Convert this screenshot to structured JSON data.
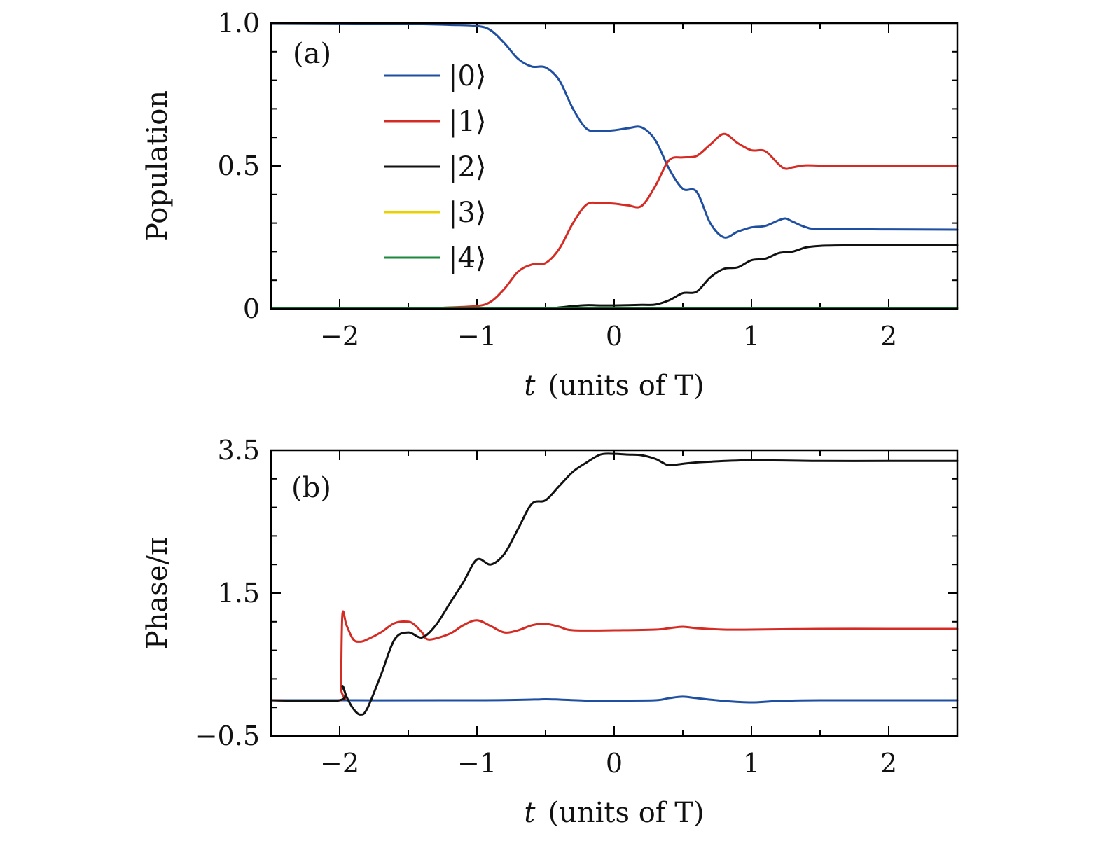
{
  "chart_data": [
    {
      "type": "line",
      "panel_label": "(a)",
      "title": "",
      "xlabel_italic": "t",
      "xlabel_rest": "(units of T)",
      "ylabel": "Population",
      "xlim": [
        -2.5,
        2.5
      ],
      "ylim": [
        0,
        1.0
      ],
      "xticks": [
        {
          "value": -2,
          "label": "−2"
        },
        {
          "value": -1,
          "label": "−1"
        },
        {
          "value": 0,
          "label": "0"
        },
        {
          "value": 1,
          "label": "1"
        },
        {
          "value": 2,
          "label": "2"
        }
      ],
      "yticks": [
        {
          "value": 0,
          "label": "0"
        },
        {
          "value": 0.5,
          "label": "0.5"
        },
        {
          "value": 1.0,
          "label": "1.0"
        }
      ],
      "legend_position": "upper-center",
      "series": [
        {
          "name": "|0⟩",
          "color": "#1f4fa0",
          "x": [
            -2.5,
            -1.6,
            -1.2,
            -1.0,
            -0.9,
            -0.8,
            -0.7,
            -0.6,
            -0.5,
            -0.4,
            -0.3,
            -0.2,
            -0.1,
            0.0,
            0.1,
            0.2,
            0.3,
            0.4,
            0.5,
            0.6,
            0.7,
            0.8,
            0.9,
            1.0,
            1.1,
            1.2,
            1.25,
            1.3,
            1.4,
            1.5,
            2.0,
            2.5
          ],
          "y": [
            1.0,
            0.998,
            0.994,
            0.99,
            0.975,
            0.93,
            0.875,
            0.848,
            0.845,
            0.8,
            0.7,
            0.63,
            0.622,
            0.625,
            0.632,
            0.635,
            0.59,
            0.49,
            0.42,
            0.41,
            0.3,
            0.25,
            0.27,
            0.285,
            0.29,
            0.31,
            0.316,
            0.305,
            0.285,
            0.28,
            0.278,
            0.277
          ]
        },
        {
          "name": "|1⟩",
          "color": "#d42c24",
          "x": [
            -2.5,
            -1.5,
            -1.2,
            -1.0,
            -0.9,
            -0.8,
            -0.7,
            -0.6,
            -0.5,
            -0.4,
            -0.3,
            -0.2,
            -0.1,
            0.0,
            0.1,
            0.2,
            0.3,
            0.4,
            0.5,
            0.6,
            0.7,
            0.8,
            0.9,
            1.0,
            1.1,
            1.2,
            1.25,
            1.3,
            1.4,
            1.6,
            2.0,
            2.5
          ],
          "y": [
            0.0,
            0.001,
            0.005,
            0.01,
            0.025,
            0.07,
            0.13,
            0.155,
            0.16,
            0.21,
            0.3,
            0.365,
            0.37,
            0.368,
            0.362,
            0.36,
            0.43,
            0.52,
            0.53,
            0.535,
            0.575,
            0.612,
            0.58,
            0.555,
            0.552,
            0.505,
            0.49,
            0.495,
            0.502,
            0.5,
            0.5,
            0.5
          ]
        },
        {
          "name": "|2⟩",
          "color": "#111111",
          "x": [
            -2.5,
            -0.6,
            -0.4,
            -0.3,
            -0.2,
            -0.1,
            0.0,
            0.2,
            0.3,
            0.4,
            0.5,
            0.6,
            0.7,
            0.8,
            0.9,
            1.0,
            1.1,
            1.2,
            1.3,
            1.4,
            1.5,
            1.7,
            2.0,
            2.5
          ],
          "y": [
            0.0,
            0.0,
            0.005,
            0.01,
            0.013,
            0.012,
            0.012,
            0.014,
            0.015,
            0.03,
            0.055,
            0.06,
            0.11,
            0.14,
            0.145,
            0.17,
            0.175,
            0.195,
            0.2,
            0.215,
            0.22,
            0.222,
            0.222,
            0.222
          ]
        },
        {
          "name": "|3⟩",
          "color": "#e8d100",
          "x": [
            -2.5,
            2.5
          ],
          "y": [
            0.0,
            0.0
          ]
        },
        {
          "name": "|4⟩",
          "color": "#1b8a3c",
          "x": [
            -2.5,
            2.5
          ],
          "y": [
            0.002,
            0.002
          ]
        }
      ]
    },
    {
      "type": "line",
      "panel_label": "(b)",
      "title": "",
      "xlabel_italic": "t",
      "xlabel_rest": "(units of T)",
      "ylabel": "Phase/π",
      "xlim": [
        -2.5,
        2.5
      ],
      "ylim": [
        -0.5,
        3.5
      ],
      "xticks": [
        {
          "value": -2,
          "label": "−2"
        },
        {
          "value": -1,
          "label": "−1"
        },
        {
          "value": 0,
          "label": "0"
        },
        {
          "value": 1,
          "label": "1"
        },
        {
          "value": 2,
          "label": "2"
        }
      ],
      "yticks": [
        {
          "value": -0.5,
          "label": "−0.5"
        },
        {
          "value": 1.5,
          "label": "1.5"
        },
        {
          "value": 3.5,
          "label": "3.5"
        }
      ],
      "series": [
        {
          "name": "",
          "color": "#1f4fa0",
          "x": [
            -2.5,
            -1.0,
            -0.6,
            -0.5,
            -0.4,
            -0.2,
            0.0,
            0.3,
            0.4,
            0.5,
            0.6,
            0.8,
            1.0,
            1.2,
            1.5,
            2.0,
            2.5
          ],
          "y": [
            0.0,
            0.0,
            0.01,
            0.015,
            0.01,
            -0.005,
            -0.005,
            0.0,
            0.03,
            0.05,
            0.03,
            -0.01,
            -0.03,
            -0.01,
            0.0,
            0.0,
            0.0
          ]
        },
        {
          "name": "",
          "color": "#d42c24",
          "x": [
            -2.5,
            -2.0,
            -1.99,
            -1.98,
            -1.95,
            -1.9,
            -1.85,
            -1.8,
            -1.7,
            -1.6,
            -1.5,
            -1.45,
            -1.4,
            -1.35,
            -1.2,
            -1.1,
            -1.0,
            -0.9,
            -0.8,
            -0.7,
            -0.6,
            -0.5,
            -0.4,
            -0.3,
            0.0,
            0.3,
            0.4,
            0.5,
            0.6,
            0.8,
            1.0,
            1.5,
            2.0,
            2.5
          ],
          "y": [
            0.0,
            0.0,
            0.2,
            1.2,
            1.05,
            0.85,
            0.82,
            0.85,
            0.95,
            1.08,
            1.1,
            1.05,
            0.95,
            0.85,
            0.93,
            1.05,
            1.12,
            1.04,
            0.95,
            0.98,
            1.05,
            1.07,
            1.03,
            0.98,
            0.98,
            0.99,
            1.01,
            1.03,
            1.01,
            0.99,
            0.99,
            1.0,
            1.0,
            1.0
          ]
        },
        {
          "name": "",
          "color": "#111111",
          "x": [
            -2.5,
            -2.0,
            -1.98,
            -1.95,
            -1.9,
            -1.85,
            -1.8,
            -1.7,
            -1.6,
            -1.5,
            -1.4,
            -1.3,
            -1.2,
            -1.1,
            -1.0,
            -0.9,
            -0.8,
            -0.7,
            -0.6,
            -0.5,
            -0.4,
            -0.3,
            -0.2,
            -0.1,
            0.0,
            0.1,
            0.2,
            0.3,
            0.35,
            0.4,
            0.5,
            0.6,
            0.7,
            1.0,
            1.5,
            2.0,
            2.5
          ],
          "y": [
            0.0,
            0.0,
            0.2,
            0.05,
            -0.12,
            -0.2,
            -0.12,
            0.35,
            0.85,
            0.95,
            0.88,
            1.05,
            1.35,
            1.65,
            1.97,
            1.9,
            2.05,
            2.4,
            2.75,
            2.8,
            3.0,
            3.2,
            3.33,
            3.44,
            3.45,
            3.44,
            3.43,
            3.38,
            3.33,
            3.29,
            3.31,
            3.33,
            3.34,
            3.36,
            3.35,
            3.35,
            3.35
          ]
        }
      ]
    }
  ]
}
